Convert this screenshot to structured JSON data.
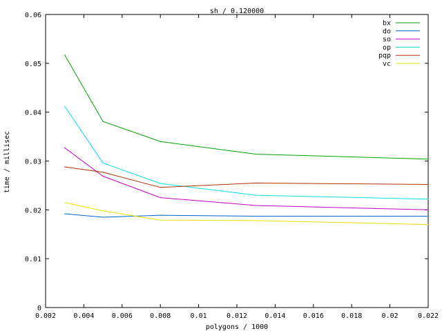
{
  "chart_data": {
    "type": "line",
    "title": "sh / 0.120000",
    "xlabel": "polygons / 1000",
    "ylabel": "time / millisec",
    "xlim": [
      0.002,
      0.022
    ],
    "ylim": [
      0,
      0.06
    ],
    "xticks": [
      "0.002",
      "0.004",
      "0.006",
      "0.008",
      "0.01",
      "0.012",
      "0.014",
      "0.016",
      "0.018",
      "0.02",
      "0.022"
    ],
    "xtick_values": [
      0.002,
      0.004,
      0.006,
      0.008,
      0.01,
      0.012,
      0.014,
      0.016,
      0.018,
      0.02,
      0.022
    ],
    "yticks": [
      "0",
      "0.01",
      "0.02",
      "0.03",
      "0.04",
      "0.05",
      "0.06"
    ],
    "ytick_values": [
      0,
      0.01,
      0.02,
      0.03,
      0.04,
      0.05,
      0.06
    ],
    "grid": false,
    "legend_position": "top-right",
    "x": [
      0.003,
      0.005,
      0.008,
      0.013,
      0.022
    ],
    "series": [
      {
        "name": "bx",
        "color": "#00a000",
        "values": [
          0.0517,
          0.0381,
          0.034,
          0.0314,
          0.0304
        ]
      },
      {
        "name": "do",
        "color": "#0060d0",
        "values": [
          0.0192,
          0.0185,
          0.0189,
          0.0187,
          0.0187
        ]
      },
      {
        "name": "so",
        "color": "#c000c0",
        "values": [
          0.0327,
          0.0269,
          0.0225,
          0.0209,
          0.02
        ]
      },
      {
        "name": "op",
        "color": "#00e0e0",
        "values": [
          0.0412,
          0.0296,
          0.0254,
          0.023,
          0.0222
        ]
      },
      {
        "name": "pqp",
        "color": "#b03000",
        "values": [
          0.0288,
          0.0277,
          0.0246,
          0.0255,
          0.0252
        ]
      },
      {
        "name": "vc",
        "color": "#e8e000",
        "values": [
          0.0215,
          0.0198,
          0.0179,
          0.0178,
          0.017
        ]
      }
    ]
  }
}
